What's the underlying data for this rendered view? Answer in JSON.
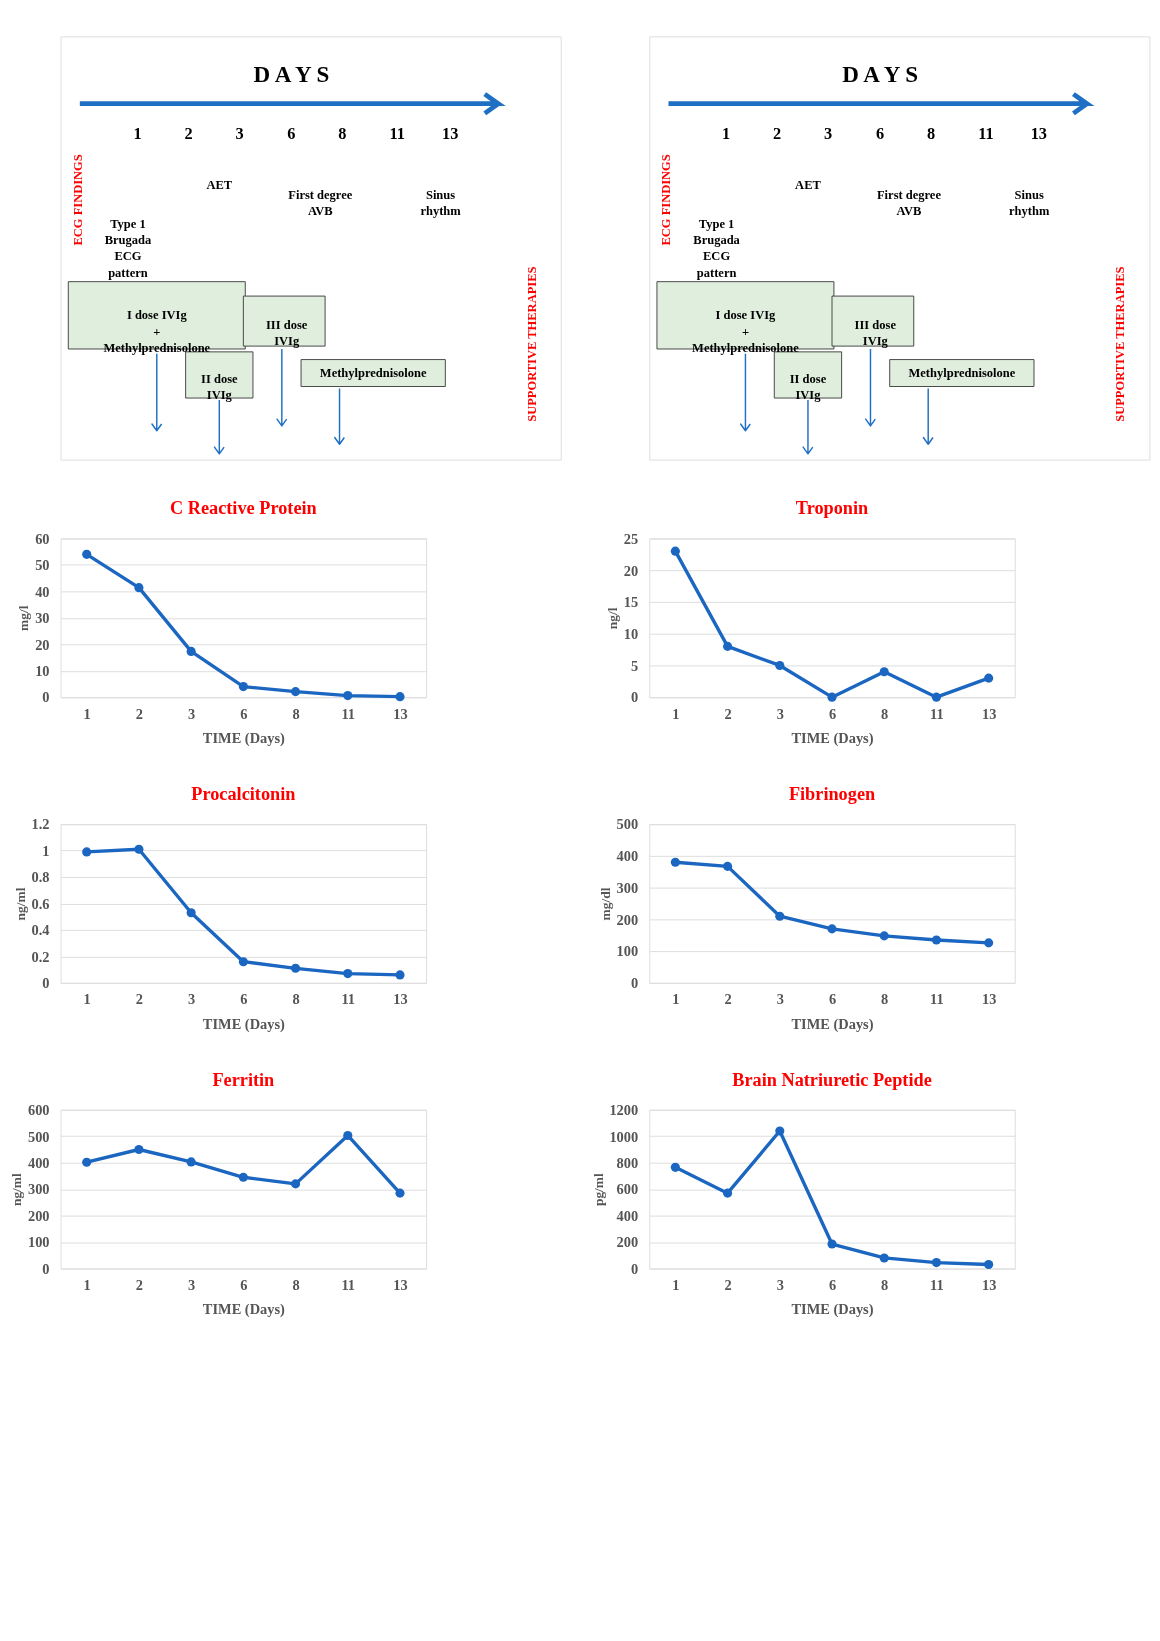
{
  "chart_data": [
    {
      "type": "other",
      "title": "D A Y S",
      "categories": [
        "1",
        "2",
        "3",
        "6",
        "8",
        "11",
        "13"
      ],
      "annotations": [
        "ECG FINDINGS",
        "Type 1 Brugada ECG pattern",
        "AET",
        "First degree AVB",
        "Sinus rhythm",
        "SUPPORTIVE THERAPIES",
        "I dose IVIg + Methylprednisolone",
        "II dose IVIg",
        "III dose IVIg",
        "Methylprednisolone"
      ]
    },
    {
      "type": "other",
      "title": "D A Y S",
      "categories": [
        "1",
        "2",
        "3",
        "6",
        "8",
        "11",
        "13"
      ],
      "annotations": [
        "ECG FINDINGS",
        "Type 1 Brugada ECG pattern",
        "AET",
        "First degree AVB",
        "Sinus rhythm",
        "SUPPORTIVE THERAPIES",
        "I dose IVIg + Methylprednisolone",
        "II dose IVIg",
        "III dose IVIg",
        "Methylprednisolone"
      ]
    },
    {
      "type": "line",
      "title": "C Reactive Protein",
      "xlabel": "TIME (Days)",
      "ylabel": "mg/l",
      "categories": [
        "1",
        "2",
        "3",
        "6",
        "8",
        "11",
        "13"
      ],
      "ylim": [
        0,
        60
      ],
      "yticks": [
        0,
        10,
        20,
        30,
        40,
        50,
        60
      ],
      "grid": "y",
      "marker": "circle",
      "series": [
        {
          "color": "#1a66c0",
          "values": [
            54,
            41.4,
            17.3,
            4,
            2.1,
            0.6,
            0.2
          ]
        }
      ]
    },
    {
      "type": "line",
      "title": "Troponin",
      "xlabel": "TIME (Days)",
      "ylabel": "ng/l",
      "categories": [
        "1",
        "2",
        "3",
        "6",
        "8",
        "11",
        "13"
      ],
      "ylim": [
        0,
        25
      ],
      "yticks": [
        0,
        5,
        10,
        15,
        20,
        25
      ],
      "grid": "y",
      "marker": "circle",
      "series": [
        {
          "color": "#1a66c0",
          "values": [
            23,
            8,
            5,
            0,
            4,
            0,
            3
          ]
        }
      ]
    },
    {
      "type": "line",
      "title": "Procalcitonin",
      "xlabel": "TIME (Days)",
      "ylabel": "ng/ml",
      "categories": [
        "1",
        "2",
        "3",
        "6",
        "8",
        "11",
        "13"
      ],
      "ylim": [
        0,
        1.2
      ],
      "yticks": [
        0,
        0.2,
        0.4,
        0.6,
        0.8,
        1,
        1.2
      ],
      "grid": "y",
      "marker": "circle",
      "series": [
        {
          "color": "#1a66c0",
          "values": [
            0.99,
            1.01,
            0.53,
            0.16,
            0.11,
            0.07,
            0.06
          ]
        }
      ]
    },
    {
      "type": "line",
      "title": "Fibrinogen",
      "xlabel": "TIME (Days)",
      "ylabel": "mg/dl",
      "categories": [
        "1",
        "2",
        "3",
        "6",
        "8",
        "11",
        "13"
      ],
      "ylim": [
        0,
        500
      ],
      "yticks": [
        0,
        100,
        200,
        300,
        400,
        500
      ],
      "grid": "y",
      "marker": "circle",
      "series": [
        {
          "color": "#1a66c0",
          "values": [
            380,
            367,
            210,
            170,
            148,
            135,
            126
          ]
        }
      ]
    },
    {
      "type": "line",
      "title": "Ferritin",
      "xlabel": "TIME (Days)",
      "ylabel": "ng/ml",
      "categories": [
        "1",
        "2",
        "3",
        "6",
        "8",
        "11",
        "13"
      ],
      "ylim": [
        0,
        600
      ],
      "yticks": [
        0,
        100,
        200,
        300,
        400,
        500,
        600
      ],
      "grid": "y",
      "marker": "circle",
      "series": [
        {
          "color": "#1a66c0",
          "values": [
            402,
            450,
            403,
            345,
            320,
            503,
            285
          ]
        }
      ]
    },
    {
      "type": "line",
      "title": "Brain Natriuretic Peptide",
      "xlabel": "TIME (Days)",
      "ylabel": "pg/ml",
      "categories": [
        "1",
        "2",
        "3",
        "6",
        "8",
        "11",
        "13"
      ],
      "ylim": [
        0,
        1200
      ],
      "yticks": [
        0,
        200,
        400,
        600,
        800,
        1000,
        1200
      ],
      "grid": "y",
      "marker": "circle",
      "series": [
        {
          "color": "#1a66c0",
          "values": [
            765,
            570,
            1040,
            185,
            80,
            45,
            30
          ]
        }
      ]
    }
  ]
}
